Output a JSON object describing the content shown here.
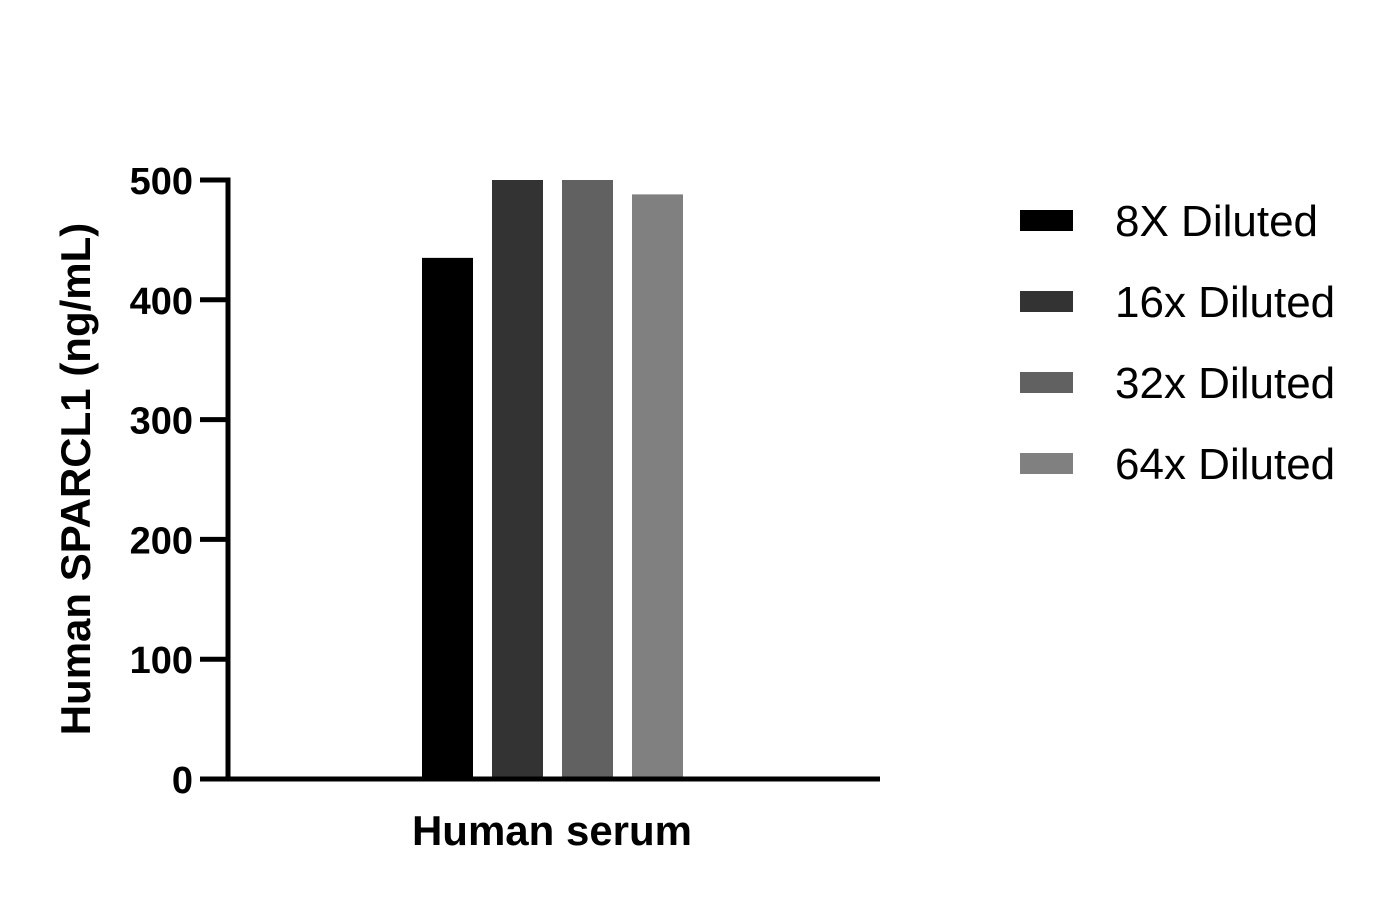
{
  "chart_data": {
    "type": "bar",
    "categories": [
      "Human serum"
    ],
    "xlabel": "Human serum",
    "ylabel": "Human SPARCL1 (ng/mL)",
    "ylim": [
      0,
      500
    ],
    "yticks": [
      0,
      100,
      200,
      300,
      400,
      500
    ],
    "grid": false,
    "legend_position": "right",
    "series": [
      {
        "name": "8X Diluted",
        "values": [
          435
        ],
        "color": "#000000"
      },
      {
        "name": "16x Diluted",
        "values": [
          500
        ],
        "color": "#333333"
      },
      {
        "name": "32x Diluted",
        "values": [
          500
        ],
        "color": "#616161"
      },
      {
        "name": "64x Diluted",
        "values": [
          488
        ],
        "color": "#808080"
      }
    ]
  }
}
